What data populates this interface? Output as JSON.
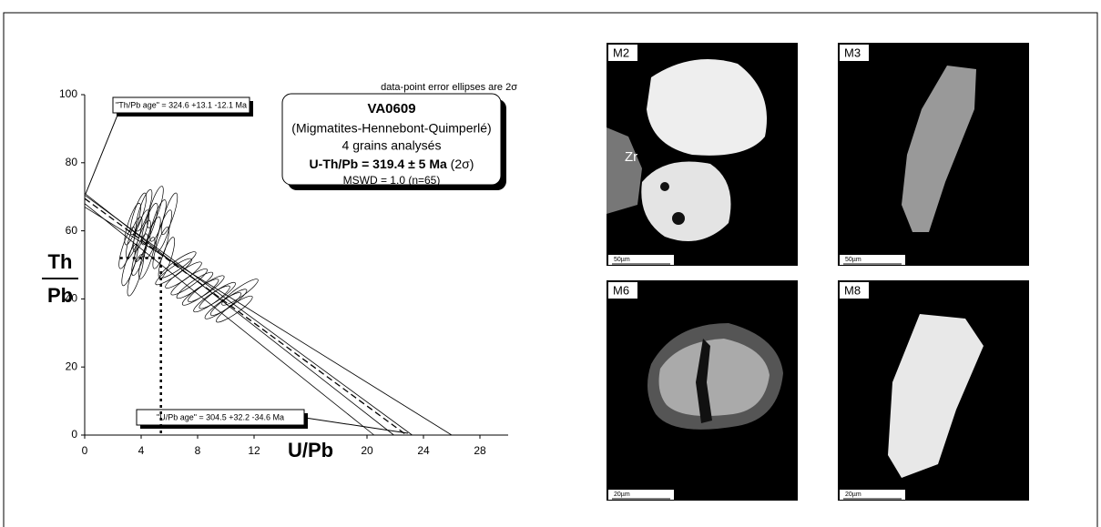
{
  "chart_data": {
    "type": "scatter",
    "note_top": "data-point error ellipses are 2σ",
    "xlabel": "U/Pb",
    "ylabel_num": "Th",
    "ylabel_den": "Pb",
    "xlim": [
      0,
      30
    ],
    "ylim": [
      0,
      100
    ],
    "xticks": [
      0,
      4,
      8,
      12,
      20,
      24,
      28
    ],
    "yticks": [
      0,
      20,
      40,
      60,
      80,
      100
    ],
    "x": [
      3.0,
      3.2,
      3.4,
      3.5,
      3.6,
      3.8,
      3.9,
      4.0,
      4.1,
      4.2,
      4.4,
      4.6,
      4.8,
      5.0,
      5.2,
      5.4,
      5.6,
      5.8,
      6.0,
      6.3,
      6.6,
      7.0,
      7.4,
      7.8,
      8.2,
      8.6,
      9.0,
      9.4,
      9.8,
      10.2,
      10.6,
      11.0
    ],
    "y": [
      55,
      50,
      62,
      58,
      47,
      65,
      53,
      60,
      57,
      66,
      52,
      62,
      58,
      67,
      63,
      55,
      60,
      52,
      65,
      48,
      50,
      47,
      45,
      44,
      42,
      43,
      40,
      41,
      38,
      39,
      37,
      42
    ],
    "lines": [
      {
        "x": [
          0,
          22.8
        ],
        "y": [
          69.5,
          0
        ],
        "dashed": true
      },
      {
        "x": [
          0,
          21.9
        ],
        "y": [
          71,
          0
        ],
        "dashed": false
      },
      {
        "x": [
          0,
          23.2
        ],
        "y": [
          70.5,
          0
        ],
        "dashed": false
      },
      {
        "x": [
          0,
          26
        ],
        "y": [
          67,
          0
        ],
        "dashed": false
      },
      {
        "x": [
          0,
          20.5
        ],
        "y": [
          68,
          0
        ],
        "dashed": false
      }
    ],
    "age_guides": [
      {
        "x": [
          2.5,
          5.4
        ],
        "y": [
          52,
          52
        ]
      },
      {
        "x": [
          5.4,
          5.4
        ],
        "y": [
          50,
          0
        ]
      }
    ],
    "th_pb_age": "\"Th/Pb age\" =  324.6 +13.1 -12.1 Ma",
    "u_pb_age": "\"U/Pb age\" = 304.5 +32.2 -34.6 Ma",
    "box_lines": [
      "VA0609",
      "(Migmatites-Hennebont-Quimperlé)",
      "4 grains analysés",
      "U-Th/Pb = 319.4 ± 5 Ma",
      "(2σ)",
      "MSWD = 1.0 (n=65)"
    ]
  },
  "images": [
    {
      "label": "M2",
      "scale": "50µm",
      "note": "Zr"
    },
    {
      "label": "M3",
      "scale": "50µm"
    },
    {
      "label": "M6",
      "scale": "20µm"
    },
    {
      "label": "M8",
      "scale": "20µm"
    }
  ]
}
